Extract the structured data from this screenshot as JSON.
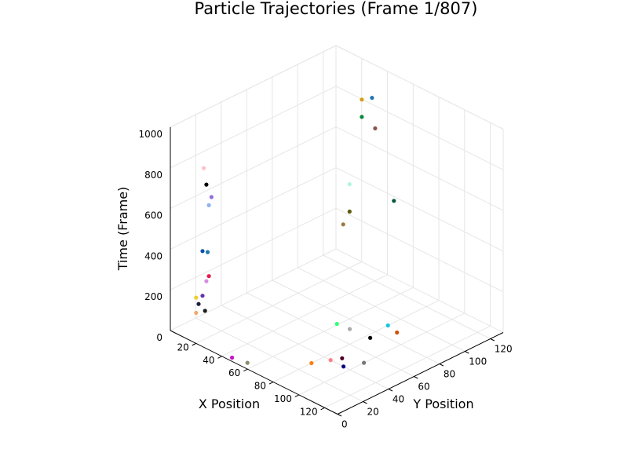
{
  "chart_data": {
    "type": "scatter",
    "title": "Particle Trajectories (Frame 1/807)",
    "xlabel": "X Position",
    "ylabel": "Y Position",
    "zlabel": "Time (Frame)",
    "xlim": [
      0,
      130
    ],
    "ylim": [
      0,
      130
    ],
    "zlim": [
      0,
      1000
    ],
    "x_ticks": [
      "20",
      "40",
      "60",
      "80",
      "100",
      "120"
    ],
    "y_ticks": [
      "0",
      "20",
      "40",
      "60",
      "80",
      "100",
      "120"
    ],
    "z_ticks": [
      "0",
      "200",
      "400",
      "600",
      "800",
      "1000"
    ],
    "grid": true,
    "legend": false,
    "points": [
      {
        "x": 80,
        "y": 80,
        "z": 1000,
        "color": "#8c564b"
      },
      {
        "x": 25,
        "y": 1,
        "z": 875,
        "color": "#ffc0cb"
      },
      {
        "x": 27,
        "y": 1,
        "z": 800,
        "color": "#000000"
      },
      {
        "x": 30,
        "y": 2,
        "z": 745,
        "color": "#9370db"
      },
      {
        "x": 29,
        "y": 1,
        "z": 705,
        "color": "#8fb4f0"
      },
      {
        "x": 70,
        "y": 70,
        "z": 725,
        "color": "#b4f5dc"
      },
      {
        "x": 70,
        "y": 70,
        "z": 590,
        "color": "#5a5a0a"
      },
      {
        "x": 68,
        "y": 67,
        "z": 530,
        "color": "#a07844"
      },
      {
        "x": 30,
        "y": 120,
        "z": 860,
        "color": "#d4a017"
      },
      {
        "x": 31,
        "y": 127,
        "z": 850,
        "color": "#1f77b4"
      },
      {
        "x": 30,
        "y": 120,
        "z": 775,
        "color": "#0a8a3c"
      },
      {
        "x": 25,
        "y": 0,
        "z": 470,
        "color": "#0a50aa"
      },
      {
        "x": 27,
        "y": 2,
        "z": 465,
        "color": "#1f77b4"
      },
      {
        "x": 28,
        "y": 2,
        "z": 350,
        "color": "#e6194b"
      },
      {
        "x": 27,
        "y": 1,
        "z": 325,
        "color": "#d58ee0"
      },
      {
        "x": 25,
        "y": 0,
        "z": 250,
        "color": "#6432aa"
      },
      {
        "x": 20,
        "y": 0,
        "z": 225,
        "color": "#e8d030"
      },
      {
        "x": 22,
        "y": 0,
        "z": 200,
        "color": "#1e1e3c"
      },
      {
        "x": 25,
        "y": 2,
        "z": 170,
        "color": "#1e1e1e"
      },
      {
        "x": 20,
        "y": 0,
        "z": 150,
        "color": "#f4a870"
      },
      {
        "x": 75,
        "y": 55,
        "z": 100,
        "color": "#32ff78"
      },
      {
        "x": 80,
        "y": 60,
        "z": 75,
        "color": "#aaaaaa"
      },
      {
        "x": 90,
        "y": 66,
        "z": 45,
        "color": "#000000"
      },
      {
        "x": 50,
        "y": 125,
        "z": 410,
        "color": "#0a5a3c"
      },
      {
        "x": 80,
        "y": 30,
        "z": 0,
        "color": "#ff7f0e"
      },
      {
        "x": 45,
        "y": 3,
        "z": 0,
        "color": "#c814c8"
      },
      {
        "x": 55,
        "y": 5,
        "z": 0,
        "color": "#8c8c6e"
      },
      {
        "x": 85,
        "y": 40,
        "z": 0,
        "color": "#ff7f8c"
      },
      {
        "x": 88,
        "y": 46,
        "z": 0,
        "color": "#500028"
      },
      {
        "x": 95,
        "y": 40,
        "z": 0,
        "color": "#000082"
      },
      {
        "x": 100,
        "y": 51,
        "z": 0,
        "color": "#787878"
      },
      {
        "x": 80,
        "y": 90,
        "z": 0,
        "color": "#14c8dc"
      },
      {
        "x": 89,
        "y": 88,
        "z": 0,
        "color": "#d2500a"
      }
    ]
  }
}
